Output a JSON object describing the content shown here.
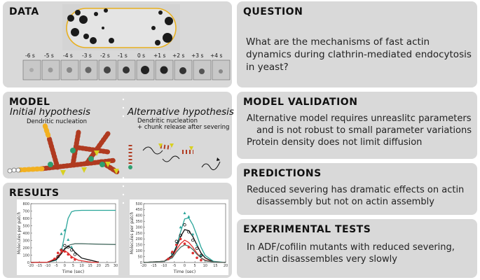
{
  "panels": {
    "data": {
      "title": "DATA",
      "time_labels": [
        "-6 s",
        "-5 s",
        "-4 s",
        "-3 s",
        "-2 s",
        "-1 s",
        "0 s",
        "+1 s",
        "+2 s",
        "+3 s",
        "+4 s"
      ]
    },
    "question": {
      "title": "QUESTION",
      "text": "What are the mechanisms of fast actin dynamics during clathrin-mediated endocytosis in yeast?"
    },
    "model": {
      "title": "MODEL",
      "initial_title": "Initial hypothesis",
      "initial_sub": "Dendritic nucleation",
      "alt_title": "Alternative hypothesis",
      "alt_sub1": "Dendritic nucleation",
      "alt_sub2": "+ chunk release after severing"
    },
    "validation": {
      "title": "MODEL VALIDATION",
      "line1": "Alternative model requires unreaslitc parameters",
      "line2": "and is not robust to small parameter variations",
      "line3": "Protein density does not limit diffusion"
    },
    "predictions": {
      "title": "PREDICTIONS",
      "line1": "Reduced severing has dramatic effects on actin",
      "line2": "disassembly but not on actin assembly"
    },
    "results": {
      "title": "RESULTS"
    },
    "tests": {
      "title": "EXPERIMENTAL TESTS",
      "line1": "In ADF/cofilin mutants with reduced severing,",
      "line2": "actin disassembles very slowly"
    }
  },
  "colors": {
    "panel_bg": "#d9d9d9",
    "teal": "#2aa59a",
    "black": "#111111",
    "red": "#e03030",
    "gray_green": "#4b6e64",
    "cell_outline": "#e8b020"
  },
  "chart_data": [
    {
      "type": "line",
      "xlabel": "Time (sec)",
      "ylabel": "Molecules per patch",
      "xlim": [
        -20,
        30
      ],
      "ylim": [
        0,
        800
      ],
      "xticks": [
        "-20",
        "-15",
        "-10",
        "-5",
        "0",
        "5",
        "10",
        "15",
        "20",
        "25",
        "30"
      ],
      "yticks": [
        "0",
        "100",
        "200",
        "300",
        "400",
        "500",
        "600",
        "700",
        "800"
      ],
      "series": [
        {
          "color": "#2aa59a",
          "x": [
            -20,
            -10,
            -5,
            -2,
            0,
            2,
            4,
            6,
            10,
            20,
            30
          ],
          "values": [
            0,
            5,
            30,
            150,
            380,
            600,
            690,
            705,
            710,
            710,
            710
          ]
        },
        {
          "color": "#4b6e64",
          "x": [
            -20,
            -10,
            -5,
            0,
            3,
            6,
            10,
            20,
            30
          ],
          "values": [
            0,
            5,
            40,
            180,
            240,
            255,
            255,
            250,
            245
          ]
        },
        {
          "color": "#111111",
          "x": [
            -20,
            -10,
            -5,
            -2,
            0,
            2,
            4,
            6,
            10,
            20
          ],
          "values": [
            0,
            5,
            40,
            120,
            190,
            220,
            200,
            140,
            60,
            5
          ]
        },
        {
          "color": "#e03030",
          "x": [
            -20,
            -10,
            -5,
            -2,
            0,
            2,
            4,
            8,
            15,
            20
          ],
          "values": [
            0,
            5,
            60,
            140,
            160,
            130,
            80,
            30,
            5,
            0
          ]
        }
      ],
      "markers": [
        {
          "color": "#2aa59a",
          "shape": "triangle",
          "x": [
            -2,
            0,
            2,
            4
          ],
          "values": [
            390,
            440,
            310,
            210
          ]
        },
        {
          "color": "#111111",
          "shape": "circle",
          "x": [
            -4,
            -2,
            0,
            2,
            4,
            6
          ],
          "values": [
            80,
            170,
            230,
            210,
            170,
            110
          ]
        },
        {
          "color": "#e03030",
          "shape": "dot",
          "x": [
            -6,
            -4,
            -2,
            0,
            2,
            4,
            6
          ],
          "values": [
            50,
            130,
            165,
            150,
            110,
            70,
            40
          ]
        }
      ]
    },
    {
      "type": "line",
      "xlabel": "Time (sec)",
      "ylabel": "Molecules per patch",
      "xlim": [
        -20,
        20
      ],
      "ylim": [
        0,
        500
      ],
      "xticks": [
        "-20",
        "-15",
        "-10",
        "-5",
        "0",
        "5",
        "10",
        "15",
        "20"
      ],
      "yticks": [
        "0",
        "50",
        "100",
        "150",
        "200",
        "250",
        "300",
        "350",
        "400",
        "450",
        "500"
      ],
      "series": [
        {
          "color": "#2aa59a",
          "x": [
            -20,
            -10,
            -6,
            -4,
            -2,
            0,
            2,
            4,
            6,
            8,
            10,
            14,
            20
          ],
          "values": [
            0,
            10,
            60,
            140,
            260,
            370,
            380,
            320,
            230,
            130,
            60,
            10,
            0
          ]
        },
        {
          "color": "#111111",
          "x": [
            -20,
            -10,
            -6,
            -4,
            -2,
            0,
            2,
            4,
            6,
            8,
            10,
            14,
            20
          ],
          "values": [
            0,
            10,
            60,
            130,
            220,
            280,
            270,
            220,
            150,
            80,
            40,
            5,
            0
          ]
        },
        {
          "color": "#e03030",
          "x": [
            -20,
            -10,
            -6,
            -4,
            -2,
            0,
            2,
            4,
            6,
            8,
            10,
            14,
            20
          ],
          "values": [
            0,
            10,
            50,
            110,
            160,
            190,
            170,
            130,
            80,
            40,
            20,
            5,
            0
          ]
        },
        {
          "color": "#4b6e64",
          "x": [
            -20,
            -10,
            -6,
            -4,
            -2,
            0,
            2,
            4,
            6,
            8,
            10,
            14,
            20
          ],
          "values": [
            0,
            10,
            40,
            90,
            130,
            150,
            140,
            110,
            70,
            40,
            15,
            5,
            0
          ]
        }
      ],
      "markers": [
        {
          "color": "#2aa59a",
          "shape": "triangle",
          "x": [
            -6,
            -4,
            -2,
            0,
            2,
            4,
            6,
            8
          ],
          "values": [
            70,
            160,
            300,
            420,
            390,
            240,
            150,
            60
          ]
        },
        {
          "color": "#111111",
          "shape": "circle",
          "x": [
            -6,
            -4,
            -2,
            0,
            2,
            4,
            6,
            8
          ],
          "values": [
            80,
            180,
            230,
            320,
            260,
            190,
            120,
            60
          ]
        },
        {
          "color": "#e03030",
          "shape": "dot",
          "x": [
            -8,
            -6,
            -4,
            -2,
            0,
            2,
            4,
            6,
            8
          ],
          "values": [
            30,
            90,
            150,
            200,
            160,
            130,
            80,
            40,
            20
          ]
        }
      ]
    }
  ]
}
